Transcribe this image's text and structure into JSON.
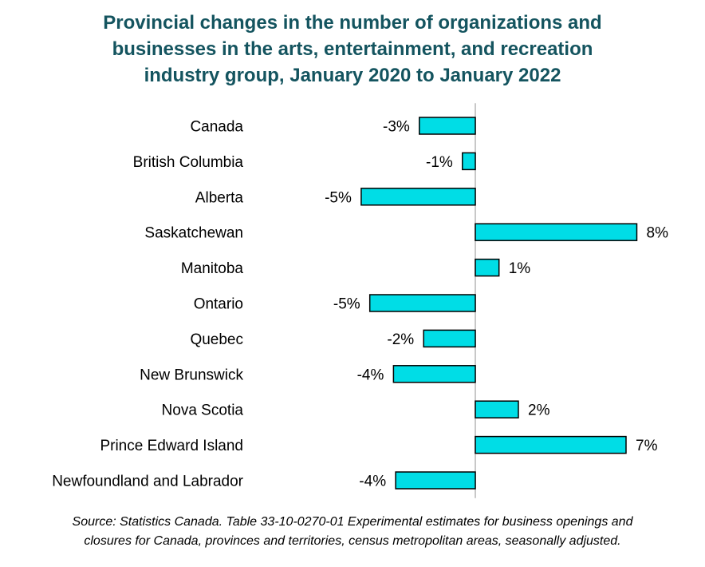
{
  "title_lines": [
    "Provincial changes in the number of organizations and",
    "businesses in the arts, entertainment, and recreation",
    "industry group, January 2020 to January 2022"
  ],
  "source_lines": [
    "Source: Statistics Canada. Table 33-10-0270-01  Experimental estimates for business openings and",
    "closures for Canada, provinces and territories, census metropolitan areas, seasonally adjusted."
  ],
  "colors": {
    "bar_fill": "#00dde6",
    "bar_stroke": "#000000",
    "title": "#14545f",
    "axis": "#c8c8c8"
  },
  "chart_data": {
    "type": "bar",
    "orientation": "horizontal",
    "title": "Provincial changes in the number of organizations and businesses in the arts, entertainment, and recreation industry group, January 2020 to January 2022",
    "categories": [
      "Canada",
      "British Columbia",
      "Alberta",
      "Saskatchewan",
      "Manitoba",
      "Ontario",
      "Quebec",
      "New Brunswick",
      "Nova Scotia",
      "Prince Edward Island",
      "Newfoundland and Labrador"
    ],
    "values": [
      -2.6,
      -0.6,
      -5.3,
      7.5,
      1.1,
      -4.9,
      -2.4,
      -3.8,
      2.0,
      7.0,
      -3.7
    ],
    "data_labels": [
      "-3%",
      "-1%",
      "-5%",
      "8%",
      "1%",
      "-5%",
      "-2%",
      "-4%",
      "2%",
      "7%",
      "-4%"
    ],
    "unit": "%",
    "xlim": [
      -7,
      9
    ],
    "grid": false,
    "legend": "none"
  }
}
